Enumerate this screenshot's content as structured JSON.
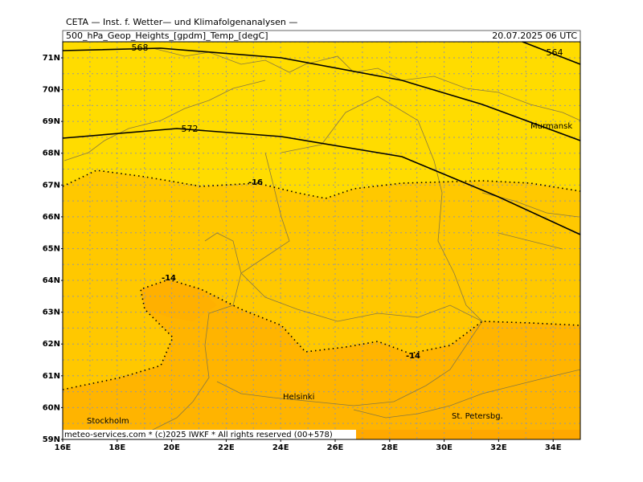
{
  "header": {
    "institute": "CETA — Inst. f. Wetter— und Klimafolgenanalysen —",
    "product": "500_hPa_Geop_Heights_[gpdm]_Temp_[degC]",
    "valid": "20.07.2025 06 UTC"
  },
  "latitude_labels": [
    "71N",
    "70N",
    "69N",
    "68N",
    "67N",
    "66N",
    "65N",
    "64N",
    "63N",
    "62N",
    "61N",
    "60N",
    "59N"
  ],
  "longitude_labels": [
    "16E",
    "18E",
    "20E",
    "22E",
    "24E",
    "26E",
    "28E",
    "30E",
    "32E",
    "34E"
  ],
  "contour_labels": {
    "height": [
      "568",
      "572",
      "564"
    ],
    "temperature": [
      "-16",
      "-14",
      "-14"
    ]
  },
  "cities": [
    "Murmansk",
    "Helsinki",
    "Stockholm",
    "St. Petersbg."
  ],
  "footer": "meteo-services.com * (c)2025 IWKF * All rights reserved (00+578)"
}
